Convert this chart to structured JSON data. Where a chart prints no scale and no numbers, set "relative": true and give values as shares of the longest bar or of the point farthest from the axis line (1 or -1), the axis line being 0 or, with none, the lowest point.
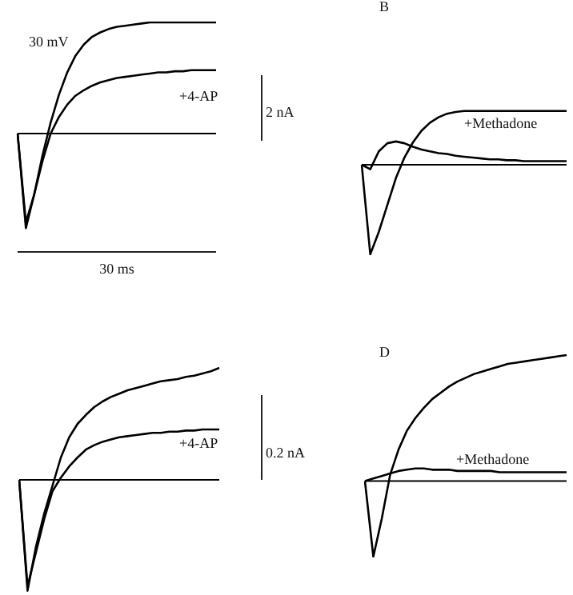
{
  "chart_data": [
    {
      "type": "line",
      "relative": true,
      "marker": "none",
      "annotations": [
        "30 mV",
        "2 nA",
        "30 ms"
      ],
      "categories": [
        null,
        null,
        null,
        null,
        null,
        null,
        null,
        null,
        null,
        null,
        null,
        null,
        null,
        null,
        null,
        null,
        null,
        null,
        null,
        null,
        null,
        null,
        null,
        null,
        null
      ],
      "ref_lines": [
        {
          "axis": "y",
          "value": 0,
          "color": "#000000"
        }
      ],
      "series": [
        {
          "color": "#000000",
          "values": [
            0,
            -0.85,
            -0.55,
            -0.2,
            0.1,
            0.35,
            0.55,
            0.7,
            0.8,
            0.87,
            0.91,
            0.94,
            0.96,
            0.97,
            0.98,
            0.99,
            1,
            1,
            1,
            1,
            1,
            1,
            1,
            1,
            1
          ]
        },
        {
          "name": "+4-AP",
          "color": "#000000",
          "values": [
            0,
            -0.8,
            -0.55,
            -0.25,
            0,
            0.15,
            0.26,
            0.34,
            0.39,
            0.43,
            0.46,
            0.48,
            0.5,
            0.51,
            0.52,
            0.53,
            0.54,
            0.55,
            0.55,
            0.56,
            0.56,
            0.57,
            0.57,
            0.57,
            0.57
          ]
        }
      ]
    },
    {
      "type": "line",
      "relative": true,
      "marker": "none",
      "title": "B",
      "categories": [
        null,
        null,
        null,
        null,
        null,
        null,
        null,
        null,
        null,
        null,
        null,
        null,
        null,
        null,
        null,
        null,
        null,
        null,
        null,
        null,
        null,
        null,
        null,
        null,
        null
      ],
      "ref_lines": [
        {
          "axis": "y",
          "value": 0,
          "color": "#000000"
        }
      ],
      "series": [
        {
          "color": "#000000",
          "values": [
            0,
            -1,
            -0.75,
            -0.45,
            -0.15,
            0.08,
            0.25,
            0.38,
            0.47,
            0.53,
            0.57,
            0.59,
            0.6,
            0.6,
            0.6,
            0.6,
            0.6,
            0.6,
            0.6,
            0.6,
            0.6,
            0.6,
            0.6,
            0.6,
            0.6
          ]
        },
        {
          "name": "+Methadone",
          "color": "#000000",
          "values": [
            0,
            -0.05,
            0.15,
            0.24,
            0.26,
            0.24,
            0.2,
            0.17,
            0.15,
            0.13,
            0.12,
            0.1,
            0.09,
            0.08,
            0.07,
            0.06,
            0.06,
            0.05,
            0.05,
            0.04,
            0.04,
            0.04,
            0.04,
            0.04,
            0.04
          ]
        }
      ]
    },
    {
      "type": "line",
      "relative": true,
      "marker": "none",
      "annotations": [
        "0.2 nA"
      ],
      "categories": [
        null,
        null,
        null,
        null,
        null,
        null,
        null,
        null,
        null,
        null,
        null,
        null,
        null,
        null,
        null,
        null,
        null,
        null,
        null,
        null,
        null,
        null,
        null,
        null,
        null
      ],
      "ref_lines": [
        {
          "axis": "y",
          "value": 0,
          "color": "#000000"
        }
      ],
      "series": [
        {
          "color": "#000000",
          "values": [
            0,
            -0.99,
            -0.6,
            -0.3,
            -0.05,
            0.2,
            0.38,
            0.5,
            0.58,
            0.65,
            0.7,
            0.74,
            0.77,
            0.8,
            0.82,
            0.84,
            0.86,
            0.88,
            0.89,
            0.9,
            0.92,
            0.93,
            0.95,
            0.97,
            1
          ]
        },
        {
          "name": "+4-AP",
          "color": "#000000",
          "values": [
            0,
            -0.95,
            -0.65,
            -0.35,
            -0.1,
            0.02,
            0.12,
            0.2,
            0.27,
            0.31,
            0.34,
            0.36,
            0.38,
            0.39,
            0.4,
            0.41,
            0.42,
            0.42,
            0.43,
            0.43,
            0.44,
            0.44,
            0.45,
            0.45,
            0.45
          ]
        }
      ]
    },
    {
      "type": "line",
      "relative": true,
      "marker": "none",
      "title": "D",
      "categories": [
        null,
        null,
        null,
        null,
        null,
        null,
        null,
        null,
        null,
        null,
        null,
        null,
        null,
        null,
        null,
        null,
        null,
        null,
        null,
        null,
        null,
        null,
        null,
        null,
        null
      ],
      "ref_lines": [
        {
          "axis": "y",
          "value": 0,
          "color": "#000000"
        }
      ],
      "series": [
        {
          "color": "#000000",
          "values": [
            0,
            -0.6,
            -0.3,
            0.05,
            0.25,
            0.4,
            0.5,
            0.58,
            0.65,
            0.7,
            0.75,
            0.79,
            0.82,
            0.85,
            0.87,
            0.89,
            0.91,
            0.93,
            0.94,
            0.95,
            0.96,
            0.97,
            0.98,
            0.99,
            1
          ]
        },
        {
          "name": "+Methadone",
          "color": "#000000",
          "values": [
            0,
            0.02,
            0.04,
            0.06,
            0.08,
            0.09,
            0.1,
            0.1,
            0.09,
            0.09,
            0.09,
            0.08,
            0.08,
            0.08,
            0.08,
            0.08,
            0.07,
            0.07,
            0.07,
            0.07,
            0.07,
            0.07,
            0.07,
            0.07,
            0.07
          ]
        }
      ]
    }
  ]
}
